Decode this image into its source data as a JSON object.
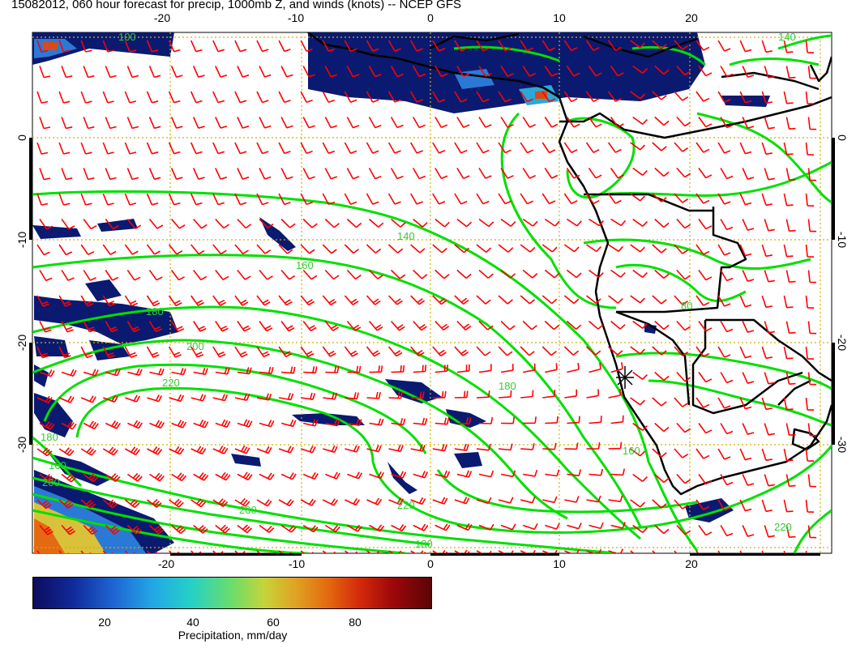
{
  "header": {
    "title": "15082012, 060 hour forecast for precip, 1000mb Z, and winds (knots) -- NCEP GFS"
  },
  "axes": {
    "top_lon_labels": [
      "-20",
      "-10",
      "0",
      "10",
      "20"
    ],
    "bottom_lon_labels": [
      "-20",
      "-10",
      "0",
      "10",
      "20"
    ],
    "lat_labels": [
      "0",
      "-10",
      "-20",
      "-30"
    ]
  },
  "contour_labels": [
    "140",
    "160",
    "180",
    "200",
    "220",
    "200",
    "180",
    "160",
    "160",
    "180",
    "200",
    "220",
    "220",
    "180",
    "140",
    "100",
    "80"
  ],
  "colorbar": {
    "title": "Precipitation, mm/day",
    "ticks": [
      "20",
      "40",
      "60",
      "80"
    ],
    "tick_values": [
      20,
      40,
      60,
      80
    ],
    "min": 0,
    "max": 100,
    "colors": [
      "#0c0c5e",
      "#1e64d2",
      "#26d2c4",
      "#c6d43a",
      "#e36a10",
      "#a0080a",
      "#5a0606"
    ]
  },
  "colors": {
    "wind_barbs": "#ff0000",
    "contours": "#00e000",
    "grid": "#d4b000",
    "precip_main": "#0a1a70",
    "coastline": "#000000"
  }
}
